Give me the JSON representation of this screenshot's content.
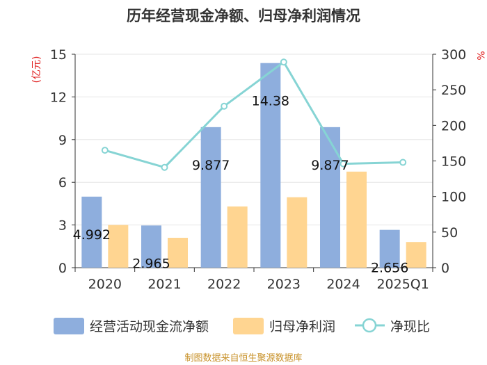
{
  "title": "历年经营现金净额、归母净利润情况",
  "source": "制图数据来自恒生聚源数据库",
  "chart_data": {
    "type": "bar",
    "categories": [
      "2020",
      "2021",
      "2022",
      "2023",
      "2024",
      "2025Q1"
    ],
    "series": [
      {
        "name": "经营活动现金流净额",
        "type": "bar",
        "axis": "left",
        "color": "#8eaedd",
        "values": [
          4.992,
          2.965,
          9.877,
          14.38,
          9.877,
          2.656
        ],
        "labels": [
          "4.992",
          "2.965",
          "9.877",
          "14.38",
          "9.877",
          "2.656"
        ]
      },
      {
        "name": "归母净利润",
        "type": "bar",
        "axis": "left",
        "color": "#ffd591",
        "values": [
          3.0,
          2.1,
          4.3,
          4.95,
          6.75,
          1.8
        ]
      },
      {
        "name": "净现比",
        "type": "line",
        "axis": "right",
        "color": "#86d4d4",
        "values": [
          165,
          141,
          227,
          289,
          146,
          148
        ]
      }
    ],
    "y_left": {
      "unit": "(亿元)",
      "ylim": [
        0,
        15
      ],
      "ticks": [
        "0",
        "3",
        "6",
        "9",
        "12",
        "15"
      ]
    },
    "y_right": {
      "unit": "%",
      "ylim": [
        0,
        300
      ],
      "ticks": [
        "0",
        "50",
        "100",
        "150",
        "200",
        "250",
        "300"
      ]
    },
    "grid": true,
    "legend": "bottom"
  }
}
